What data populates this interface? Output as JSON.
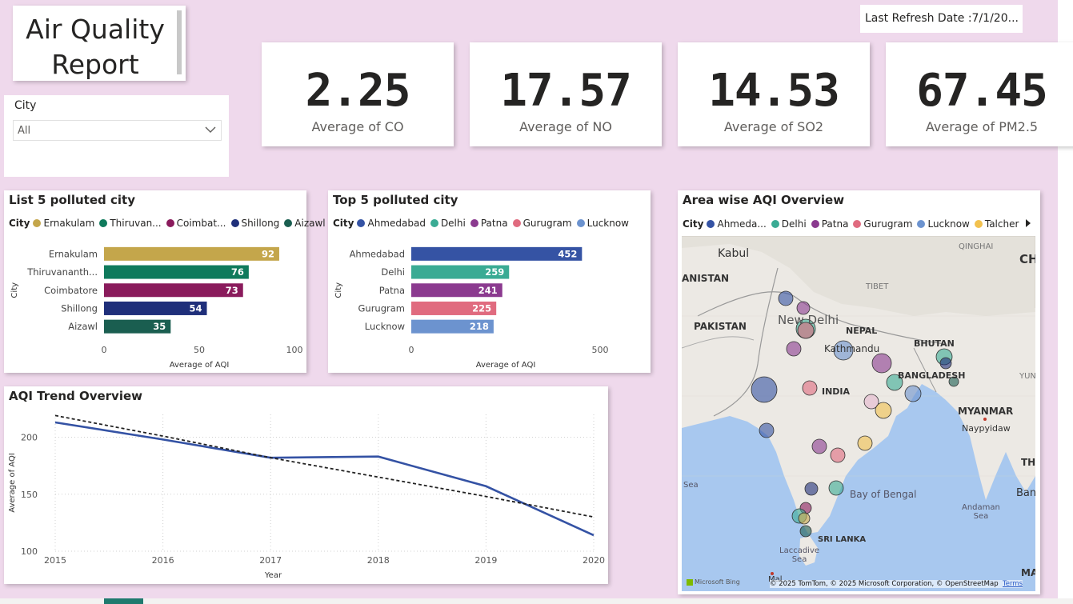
{
  "header": {
    "title_line1": "Air Quality",
    "title_line2": "Report",
    "refresh_label": "Last Refresh Date :7/1/20..."
  },
  "slicer": {
    "label": "City",
    "value": "All",
    "icon": "chevron-down-icon"
  },
  "kpis": [
    {
      "value": "2.25",
      "label": "Average of CO"
    },
    {
      "value": "17.57",
      "label": "Average of NO"
    },
    {
      "value": "14.53",
      "label": "Average of SO2"
    },
    {
      "value": "67.45",
      "label": "Average of PM2.5"
    }
  ],
  "colors": {
    "page_bg": "#efd9ec",
    "ernakulam": "#c4a64b",
    "thiruvananthapuram": "#0f7a5c",
    "coimbatore": "#8a1b5c",
    "shillong": "#1f2f7a",
    "aizawl": "#1a5e50",
    "ahmedabad": "#3553a4",
    "delhi": "#3aab94",
    "patna": "#8b3a8f",
    "gurugram": "#e06b7f",
    "lucknow": "#6c93cf",
    "talcher": "#f2c14e",
    "trend_line": "#3452a4",
    "trend_dashed": "#222222"
  },
  "chart_data": [
    {
      "type": "bar",
      "orientation": "horizontal",
      "title": "List 5 polluted city",
      "legend_title": "City",
      "legend": [
        "Ernakulam",
        "Thiruvan...",
        "Coimbat...",
        "Shillong",
        "Aizawl"
      ],
      "categories": [
        "Ernakulam",
        "Thiruvananth...",
        "Coimbatore",
        "Shillong",
        "Aizawl"
      ],
      "values": [
        92,
        76,
        73,
        54,
        35
      ],
      "xlabel": "Average of AQI",
      "ylabel": "City",
      "xlim": [
        0,
        100
      ],
      "xticks": [
        "0",
        "50",
        "100"
      ],
      "legend_position": "top"
    },
    {
      "type": "bar",
      "orientation": "horizontal",
      "title": "Top 5 polluted city",
      "legend_title": "City",
      "legend": [
        "Ahmedabad",
        "Delhi",
        "Patna",
        "Gurugram",
        "Lucknow"
      ],
      "categories": [
        "Ahmedabad",
        "Delhi",
        "Patna",
        "Gurugram",
        "Lucknow"
      ],
      "values": [
        452,
        259,
        241,
        225,
        218
      ],
      "xlabel": "Average of AQI",
      "ylabel": "City",
      "xlim": [
        0,
        500
      ],
      "xticks": [
        "0",
        "500"
      ],
      "legend_position": "top"
    },
    {
      "type": "line",
      "title": "AQI Trend Overview",
      "x": [
        2015,
        2016,
        2017,
        2018,
        2019,
        2020
      ],
      "xticks": [
        "2015",
        "2016",
        "2017",
        "2018",
        "2019",
        "2020"
      ],
      "series": [
        {
          "values": [
            213,
            198,
            182,
            183,
            157,
            114
          ]
        },
        {
          "values": [
            219,
            201,
            182,
            165,
            148,
            130
          ],
          "style": "dashed trend"
        }
      ],
      "xlabel": "Year",
      "ylabel": "Average of AQI",
      "ylim": [
        100,
        220
      ],
      "yticks": [
        "100",
        "150",
        "200"
      ],
      "grid": true
    }
  ],
  "map": {
    "title": "Area wise AQI Overview",
    "legend_title": "City",
    "legend": [
      "Ahmeda...",
      "Delhi",
      "Patna",
      "Gurugram",
      "Lucknow",
      "Talcher"
    ],
    "legend_next_icon": "triangle-right-icon",
    "labels": {
      "kabul": "Kabul",
      "qinghai": "QINGHAI",
      "ch": "CH",
      "anistan": "ANISTAN",
      "tibet": "TIBET",
      "new_delhi": "New Delhi",
      "pakistan": "PAKISTAN",
      "nepal": "NEPAL",
      "kathmandu": "Kathmandu",
      "bhutan": "BHUTAN",
      "bangladesh": "BANGLADESH",
      "yun": "YUN",
      "india": "INDIA",
      "myanmar": "MYANMAR",
      "naypyidaw": "Naypyidaw",
      "thai": "THAI",
      "sea": "Sea",
      "bay_of_bengal": "Bay of Bengal",
      "bangk": "Bangk",
      "andaman_sea": "Andaman\nSea",
      "sri_lanka": "SRI LANKA",
      "laccadive_sea": "Laccadive\nSea",
      "mal": "Mal",
      "ma": "MA"
    },
    "attribution": "© 2025 TomTom, © 2025 Microsoft Corporation, © OpenStreetMap",
    "terms": "Terms",
    "bing": "Microsoft Bing"
  }
}
